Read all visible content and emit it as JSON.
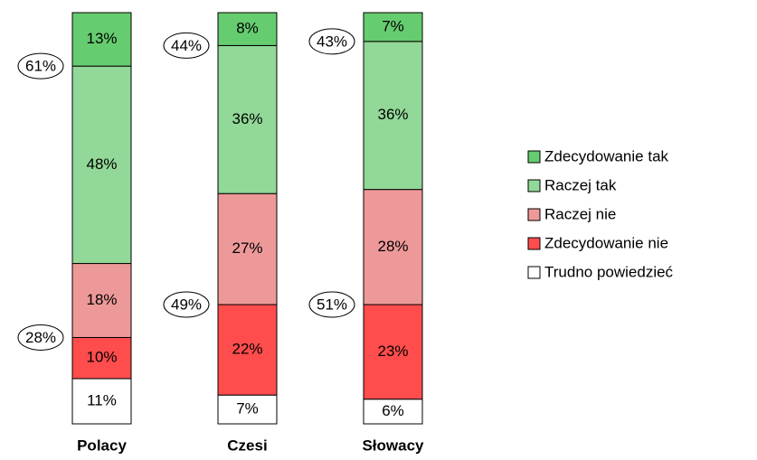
{
  "chart_data": {
    "type": "stacked_bar",
    "categories": [
      "Polacy",
      "Czesi",
      "Słowacy"
    ],
    "series": [
      {
        "name": "Zdecydowanie tak",
        "color": "#66cc70",
        "values": [
          13,
          8,
          7
        ],
        "value_labels": [
          "13%",
          "8%",
          "7%"
        ]
      },
      {
        "name": "Raczej tak",
        "color": "#92d898",
        "values": [
          48,
          36,
          36
        ],
        "value_labels": [
          "48%",
          "36%",
          "36%"
        ]
      },
      {
        "name": "Raczej nie",
        "color": "#ee9999",
        "values": [
          18,
          27,
          28
        ],
        "value_labels": [
          "18%",
          "27%",
          "28%"
        ]
      },
      {
        "name": "Zdecydowanie nie",
        "color": "#ff4d4d",
        "values": [
          10,
          22,
          23
        ],
        "value_labels": [
          "10%",
          "22%",
          "23%"
        ]
      },
      {
        "name": "Trudno powiedzieć",
        "color": "#ffffff",
        "values": [
          11,
          7,
          6
        ],
        "value_labels": [
          "11%",
          "7%",
          "6%"
        ]
      }
    ],
    "yes_totals": {
      "values": [
        61,
        44,
        43
      ],
      "value_labels": [
        "61%",
        "44%",
        "43%"
      ]
    },
    "no_totals": {
      "values": [
        28,
        49,
        51
      ],
      "value_labels": [
        "28%",
        "49%",
        "51%"
      ]
    }
  }
}
